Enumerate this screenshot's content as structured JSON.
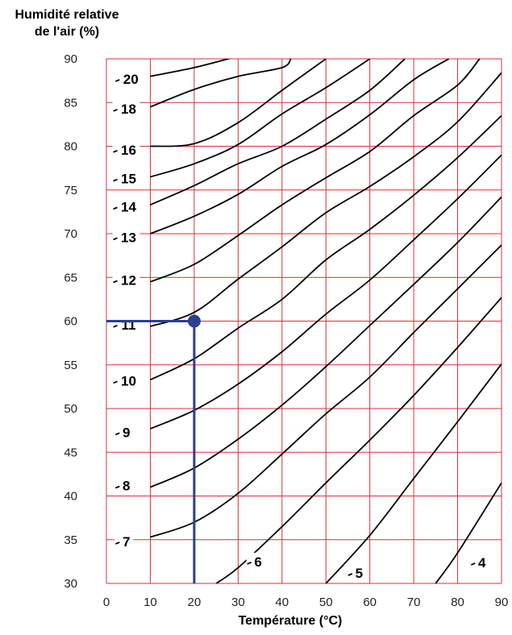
{
  "chart_data": {
    "type": "line",
    "title": "",
    "xlabel": "Température (°C)",
    "ylabel": "Humidité relative de l'air (%)",
    "xlim": [
      0,
      90
    ],
    "ylim": [
      30,
      90
    ],
    "x_ticks": [
      "0",
      "10",
      "20",
      "30",
      "40",
      "50",
      "60",
      "70",
      "80",
      "90"
    ],
    "y_ticks": [
      "30",
      "35",
      "40",
      "45",
      "50",
      "55",
      "60",
      "65",
      "70",
      "75",
      "80",
      "85",
      "90"
    ],
    "grid": true,
    "grid_color": "#d9303a",
    "curve_color": "#000000",
    "highlight_color": "#2b3f8f",
    "series": [
      {
        "name": "20",
        "points": [
          [
            10,
            88
          ],
          [
            20,
            89
          ],
          [
            30,
            90.3
          ]
        ]
      },
      {
        "name": "18",
        "points": [
          [
            10,
            84.5
          ],
          [
            20,
            86.5
          ],
          [
            30,
            88
          ],
          [
            40,
            89
          ],
          [
            42,
            90
          ]
        ]
      },
      {
        "name": "16",
        "points": [
          [
            10,
            80
          ],
          [
            20,
            80.3
          ],
          [
            30,
            82.7
          ],
          [
            40,
            86.4
          ],
          [
            50,
            90
          ]
        ]
      },
      {
        "name": "15",
        "points": [
          [
            10,
            76.5
          ],
          [
            20,
            78
          ],
          [
            30,
            80.2
          ],
          [
            40,
            83.7
          ],
          [
            50,
            86.7
          ],
          [
            60,
            90
          ]
        ]
      },
      {
        "name": "14",
        "points": [
          [
            10,
            73.3
          ],
          [
            20,
            75.5
          ],
          [
            30,
            78
          ],
          [
            40,
            80
          ],
          [
            50,
            83.1
          ],
          [
            60,
            86.4
          ],
          [
            68,
            90
          ]
        ]
      },
      {
        "name": "13",
        "points": [
          [
            10,
            70
          ],
          [
            20,
            72
          ],
          [
            30,
            74.5
          ],
          [
            40,
            77.7
          ],
          [
            50,
            80.2
          ],
          [
            60,
            83.6
          ],
          [
            70,
            87.6
          ],
          [
            78,
            90
          ]
        ]
      },
      {
        "name": "12",
        "points": [
          [
            10,
            64.5
          ],
          [
            20,
            66.5
          ],
          [
            30,
            69.8
          ],
          [
            40,
            73.3
          ],
          [
            50,
            76.4
          ],
          [
            60,
            79.4
          ],
          [
            70,
            83.5
          ],
          [
            80,
            87
          ],
          [
            85,
            90
          ]
        ]
      },
      {
        "name": "11",
        "points": [
          [
            10,
            59.4
          ],
          [
            20,
            61
          ],
          [
            30,
            64.8
          ],
          [
            40,
            68.5
          ],
          [
            50,
            72.4
          ],
          [
            60,
            75.4
          ],
          [
            70,
            78.8
          ],
          [
            80,
            82.8
          ],
          [
            90,
            88.4
          ]
        ]
      },
      {
        "name": "10",
        "points": [
          [
            10,
            53.3
          ],
          [
            20,
            55.7
          ],
          [
            30,
            59.2
          ],
          [
            40,
            62.5
          ],
          [
            50,
            67
          ],
          [
            60,
            70.5
          ],
          [
            70,
            74.4
          ],
          [
            80,
            78.7
          ],
          [
            90,
            83.5
          ]
        ]
      },
      {
        "name": "9",
        "points": [
          [
            10,
            47.7
          ],
          [
            20,
            49.8
          ],
          [
            30,
            52.8
          ],
          [
            40,
            56.5
          ],
          [
            50,
            60.8
          ],
          [
            60,
            64.7
          ],
          [
            70,
            69.3
          ],
          [
            80,
            74
          ],
          [
            90,
            79
          ]
        ]
      },
      {
        "name": "8",
        "points": [
          [
            10,
            41
          ],
          [
            20,
            43.2
          ],
          [
            30,
            46.5
          ],
          [
            40,
            50.4
          ],
          [
            50,
            54.8
          ],
          [
            60,
            59.5
          ],
          [
            70,
            64.2
          ],
          [
            80,
            69
          ],
          [
            90,
            74.2
          ]
        ]
      },
      {
        "name": "7",
        "points": [
          [
            10,
            35.3
          ],
          [
            20,
            37
          ],
          [
            30,
            40.3
          ],
          [
            40,
            44.8
          ],
          [
            50,
            49.4
          ],
          [
            60,
            53.6
          ],
          [
            70,
            58.7
          ],
          [
            80,
            63.7
          ],
          [
            90,
            68.7
          ]
        ]
      },
      {
        "name": "6",
        "points": [
          [
            25,
            30
          ],
          [
            30,
            31.8
          ],
          [
            40,
            36.5
          ],
          [
            50,
            41.5
          ],
          [
            60,
            46.4
          ],
          [
            70,
            51.5
          ],
          [
            80,
            57
          ],
          [
            90,
            62.7
          ]
        ]
      },
      {
        "name": "5",
        "points": [
          [
            50,
            30
          ],
          [
            60,
            35.5
          ],
          [
            70,
            42
          ],
          [
            80,
            48.5
          ],
          [
            90,
            55.1
          ]
        ]
      },
      {
        "name": "4",
        "points": [
          [
            75,
            30
          ],
          [
            80,
            33.5
          ],
          [
            90,
            41.5
          ]
        ]
      }
    ],
    "curve_labels": [
      {
        "text": "20",
        "x": 5,
        "y": 87.7
      },
      {
        "text": "18",
        "x": 4.5,
        "y": 84.3
      },
      {
        "text": "16",
        "x": 4.5,
        "y": 79.6
      },
      {
        "text": "15",
        "x": 4.5,
        "y": 76.3
      },
      {
        "text": "14",
        "x": 4.5,
        "y": 73.1
      },
      {
        "text": "13",
        "x": 4.5,
        "y": 69.6
      },
      {
        "text": "12",
        "x": 4.5,
        "y": 64.7
      },
      {
        "text": "11",
        "x": 4.5,
        "y": 59.6
      },
      {
        "text": "10",
        "x": 4.5,
        "y": 53.2
      },
      {
        "text": "9",
        "x": 4,
        "y": 47.3
      },
      {
        "text": "8",
        "x": 4,
        "y": 41.2
      },
      {
        "text": "7",
        "x": 4,
        "y": 34.8
      },
      {
        "text": "6",
        "x": 34,
        "y": 32.5
      },
      {
        "text": "5",
        "x": 57,
        "y": 31.2
      },
      {
        "text": "4",
        "x": 85,
        "y": 32.4
      }
    ],
    "highlight_point": {
      "x": 20,
      "y": 60
    }
  }
}
